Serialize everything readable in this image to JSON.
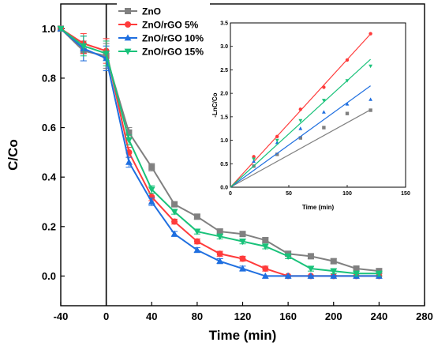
{
  "chart_data": [
    {
      "type": "line",
      "xlabel": "Time (min)",
      "ylabel": "C/Co",
      "xlim": [
        -40,
        280
      ],
      "ylim": [
        -0.12,
        1.1
      ],
      "xticks": [
        -40,
        0,
        40,
        80,
        120,
        160,
        200,
        240,
        280
      ],
      "yticks": [
        0.0,
        0.2,
        0.4,
        0.6,
        0.8,
        1.0
      ],
      "vline": 0,
      "grid": false,
      "legend_position": "top-left",
      "series": [
        {
          "name": "ZnO",
          "color": "#808080",
          "marker": "square",
          "x": [
            -40,
            -20,
            0,
            20,
            40,
            60,
            80,
            100,
            120,
            140,
            160,
            180,
            200,
            220,
            240
          ],
          "y": [
            1.0,
            0.91,
            0.89,
            0.58,
            0.44,
            0.29,
            0.24,
            0.18,
            0.17,
            0.145,
            0.09,
            0.08,
            0.06,
            0.03,
            0.02
          ],
          "err": [
            0,
            0.04,
            0.05,
            0.02,
            0.015,
            0.01,
            0.01,
            0.01,
            0.01,
            0.01,
            0.01,
            0.01,
            0.01,
            0.01,
            0.01
          ]
        },
        {
          "name": "ZnO/rGO 5%",
          "color": "#ff3b3b",
          "marker": "circle",
          "x": [
            -40,
            -20,
            0,
            20,
            40,
            60,
            80,
            100,
            120,
            140,
            160,
            180,
            200,
            220,
            240
          ],
          "y": [
            1.0,
            0.94,
            0.91,
            0.5,
            0.32,
            0.22,
            0.14,
            0.09,
            0.07,
            0.03,
            0.0,
            0.0,
            0.0,
            0.0,
            0.0
          ],
          "err": [
            0,
            0.04,
            0.05,
            0.02,
            0.015,
            0.01,
            0.01,
            0.01,
            0.01,
            0.01,
            0.0,
            0.0,
            0.0,
            0.0,
            0.0
          ]
        },
        {
          "name": "ZnO/rGO 10%",
          "color": "#1f6fe0",
          "marker": "triangle-up",
          "x": [
            -40,
            -20,
            0,
            20,
            40,
            60,
            80,
            100,
            120,
            140,
            160,
            180,
            200,
            220,
            240
          ],
          "y": [
            1.0,
            0.92,
            0.88,
            0.46,
            0.3,
            0.17,
            0.105,
            0.06,
            0.03,
            0.0,
            0.0,
            0.0,
            0.0,
            0.0,
            0.0
          ],
          "err": [
            0,
            0.05,
            0.05,
            0.02,
            0.015,
            0.01,
            0.01,
            0.01,
            0.01,
            0.0,
            0.0,
            0.0,
            0.0,
            0.0,
            0.0
          ]
        },
        {
          "name": "ZnO/rGO 15%",
          "color": "#19c27a",
          "marker": "triangle-down",
          "x": [
            -40,
            -20,
            0,
            20,
            40,
            60,
            80,
            100,
            120,
            140,
            160,
            180,
            200,
            220,
            240
          ],
          "y": [
            1.0,
            0.93,
            0.9,
            0.55,
            0.35,
            0.26,
            0.18,
            0.16,
            0.14,
            0.12,
            0.08,
            0.03,
            0.02,
            0.01,
            0.01
          ],
          "err": [
            0,
            0.04,
            0.05,
            0.02,
            0.015,
            0.01,
            0.01,
            0.01,
            0.01,
            0.01,
            0.01,
            0.01,
            0.01,
            0.01,
            0.01
          ]
        }
      ]
    },
    {
      "type": "scatter",
      "xlabel": "Time (min)",
      "ylabel": "-LnC/Co",
      "xlim": [
        0,
        150
      ],
      "ylim": [
        0,
        3.5
      ],
      "xticks": [
        0,
        50,
        100,
        150
      ],
      "yticks": [
        0.0,
        0.5,
        1.0,
        1.5,
        2.0,
        2.5,
        3.0,
        3.5
      ],
      "grid": false,
      "series": [
        {
          "name": "ZnO",
          "color": "#808080",
          "marker": "square",
          "x": [
            20,
            40,
            60,
            80,
            100,
            120
          ],
          "y": [
            0.45,
            0.7,
            1.05,
            1.27,
            1.57,
            1.64
          ],
          "fit_slope": 0.01375
        },
        {
          "name": "ZnO/rGO 5%",
          "color": "#ff3b3b",
          "marker": "circle",
          "x": [
            20,
            40,
            60,
            80,
            100,
            120
          ],
          "y": [
            0.65,
            1.08,
            1.66,
            2.13,
            2.71,
            3.27
          ],
          "fit_slope": 0.0272
        },
        {
          "name": "ZnO/rGO 10%",
          "color": "#1f6fe0",
          "marker": "triangle-up",
          "x": [
            20,
            40,
            60,
            80,
            100,
            120
          ],
          "y": [
            0.55,
            0.95,
            1.25,
            1.6,
            1.77,
            1.87
          ],
          "fit_slope": 0.018
        },
        {
          "name": "ZnO/rGO 15%",
          "color": "#19c27a",
          "marker": "triangle-down",
          "x": [
            20,
            40,
            60,
            80,
            100,
            120
          ],
          "y": [
            0.6,
            1.0,
            1.42,
            1.85,
            2.27,
            2.58
          ],
          "fit_slope": 0.0227
        }
      ]
    }
  ]
}
